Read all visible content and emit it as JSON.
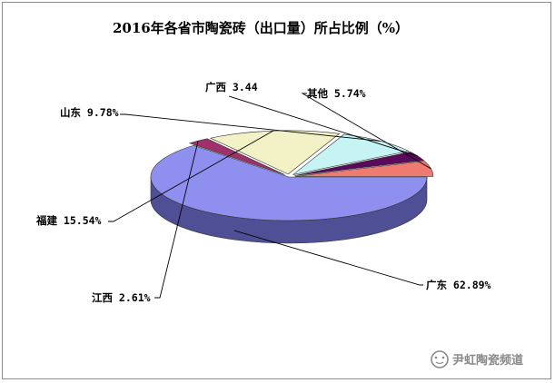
{
  "chart_data": {
    "type": "pie",
    "title": "2016年各省市陶瓷砖（出口量）所占比例（%）",
    "slices": [
      {
        "label": "广东 62.89%",
        "name": "广东",
        "value": 62.89,
        "color": "#8f8ff0",
        "side": "#4f4f96"
      },
      {
        "label": "江西 2.61%",
        "name": "江西",
        "value": 2.61,
        "color": "#a0306a",
        "side": "#6a1c44"
      },
      {
        "label": "福建 15.54%",
        "name": "福建",
        "value": 15.54,
        "color": "#f2f2c6",
        "side": "#cfcf96"
      },
      {
        "label": "山东 9.78%",
        "name": "山东",
        "value": 9.78,
        "color": "#c6f4f4",
        "side": "#8ac2c2"
      },
      {
        "label": "广西 3.44",
        "name": "广西",
        "value": 3.44,
        "color": "#5a0a5a",
        "side": "#380638"
      },
      {
        "label": "其他 5.74%",
        "name": "其他",
        "value": 5.74,
        "color": "#ee7a72",
        "side": "#a84e48"
      }
    ],
    "legend": "none",
    "style": "3d-exploded"
  },
  "watermark": {
    "text": "尹虹陶瓷频道",
    "icon": "wechat-chat-icon"
  }
}
